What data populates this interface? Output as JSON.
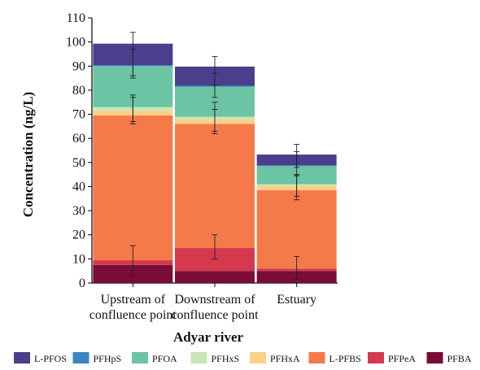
{
  "chart_data": {
    "type": "bar",
    "stacked": true,
    "xlabel": "Adyar  river",
    "ylabel": "Concentration (ng/L)",
    "ylim": [
      0,
      110
    ],
    "yticks": [
      0,
      10,
      20,
      30,
      40,
      50,
      60,
      70,
      80,
      90,
      100,
      110
    ],
    "grid": false,
    "legend_position": "bottom",
    "categories": [
      [
        "Upstream of",
        "confluence point"
      ],
      [
        "Downstream of",
        "confluence point"
      ],
      [
        "Estuary"
      ]
    ],
    "series": [
      {
        "name": "PFBA",
        "color": "#7a0c38",
        "values": [
          7.5,
          5.0,
          5.0
        ]
      },
      {
        "name": "PFPeA",
        "color": "#d4394e",
        "values": [
          2.0,
          9.5,
          1.0
        ]
      },
      {
        "name": "L-PFBS",
        "color": "#f47a4a",
        "values": [
          60.0,
          51.5,
          32.5
        ]
      },
      {
        "name": "PFHxA",
        "color": "#fbd08a",
        "values": [
          2.0,
          2.0,
          2.0
        ]
      },
      {
        "name": "PFHxS",
        "color": "#c6e7b5",
        "values": [
          1.5,
          1.0,
          0.5
        ]
      },
      {
        "name": "PFOA",
        "color": "#6bc4a4",
        "values": [
          17.0,
          12.5,
          7.5
        ]
      },
      {
        "name": "PFHpS",
        "color": "#3a86c4",
        "values": [
          0.3,
          0.3,
          0.3
        ]
      },
      {
        "name": "L-PFOS",
        "color": "#4a3f8c",
        "values": [
          9.0,
          8.0,
          4.5
        ]
      }
    ],
    "error_bars": [
      [
        {
          "y": 9.5,
          "low": 3.0,
          "high": 15.5
        },
        {
          "y": 72.0,
          "low": 66.0,
          "high": 77.0
        },
        {
          "y": 74.0,
          "low": 67.0,
          "high": 78.0
        },
        {
          "y": 91.0,
          "low": 85.0,
          "high": 97.0
        },
        {
          "y": 96.0,
          "low": 86.0,
          "high": 104.0
        }
      ],
      [
        {
          "y": 14.5,
          "low": 10.0,
          "high": 20.0
        },
        {
          "y": 68.0,
          "low": 62.0,
          "high": 72.0
        },
        {
          "y": 69.0,
          "low": 63.0,
          "high": 75.0
        },
        {
          "y": 82.0,
          "low": 77.0,
          "high": 87.0
        },
        {
          "y": 89.0,
          "low": 82.0,
          "high": 94.0
        }
      ],
      [
        {
          "y": 6.0,
          "low": 1.5,
          "high": 11.0
        },
        {
          "y": 39.0,
          "low": 34.5,
          "high": 44.5
        },
        {
          "y": 40.5,
          "low": 36.0,
          "high": 45.0
        },
        {
          "y": 48.5,
          "low": 44.5,
          "high": 54.5
        },
        {
          "y": 53.0,
          "low": 48.0,
          "high": 57.5
        }
      ]
    ],
    "legend_order": [
      "L-PFOS",
      "PFHpS",
      "PFOA",
      "PFHxS",
      "PFHxA",
      "L-PFBS",
      "PFPeA",
      "PFBA"
    ]
  }
}
